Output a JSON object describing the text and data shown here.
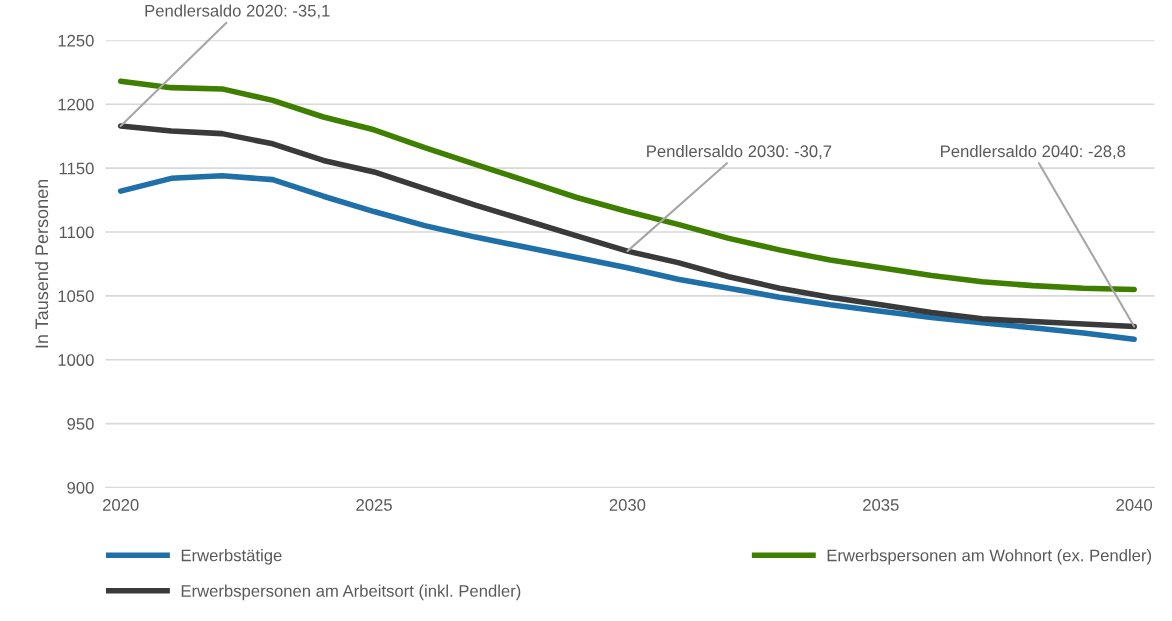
{
  "chart_data": {
    "type": "line",
    "ylabel": "In Tausend Personen",
    "x": [
      2020,
      2021,
      2022,
      2023,
      2024,
      2025,
      2026,
      2027,
      2028,
      2029,
      2030,
      2031,
      2032,
      2033,
      2034,
      2035,
      2036,
      2037,
      2038,
      2039,
      2040
    ],
    "series": [
      {
        "name": "Erwerbstätige",
        "color": "#1f6fa8",
        "values": [
          1132,
          1142,
          1144,
          1141,
          1128,
          1116,
          1105,
          1096,
          1088,
          1080,
          1072,
          1063,
          1056,
          1049,
          1043,
          1038,
          1033,
          1029,
          1025,
          1021,
          1016
        ]
      },
      {
        "name": "Erwerbspersonen am Wohnort (ex. Pendler)",
        "color": "#3f7f00",
        "values": [
          1218,
          1213,
          1212,
          1203,
          1190,
          1180,
          1166,
          1153,
          1140,
          1127,
          1116,
          1106,
          1095,
          1086,
          1078,
          1072,
          1066,
          1061,
          1058,
          1056,
          1055
        ]
      },
      {
        "name": "Erwerbspersonen am Arbeitsort (inkl. Pendler)",
        "color": "#3a3a3a",
        "values": [
          1183,
          1179,
          1177,
          1169,
          1156,
          1147,
          1134,
          1121,
          1109,
          1097,
          1085,
          1076,
          1065,
          1056,
          1049,
          1043,
          1037,
          1032,
          1030,
          1028,
          1026
        ]
      }
    ],
    "xlim": [
      2019.7,
      2040.4
    ],
    "xticks": [
      2020,
      2025,
      2030,
      2035,
      2040
    ],
    "ylim": [
      900,
      1250
    ],
    "yticks": [
      900,
      950,
      1000,
      1050,
      1100,
      1150,
      1200,
      1250
    ],
    "grid": "y",
    "legend": "bottom",
    "marker": "none",
    "line_style": "solid",
    "annotations": [
      {
        "text": "Pendlersaldo 2020: -35,1",
        "x": 2020,
        "y": 1183
      },
      {
        "text": "Pendlersaldo 2030: -30,7",
        "x": 2030,
        "y": 1085
      },
      {
        "text": "Pendlersaldo 2040: -28,8",
        "x": 2040,
        "y": 1026
      }
    ]
  }
}
